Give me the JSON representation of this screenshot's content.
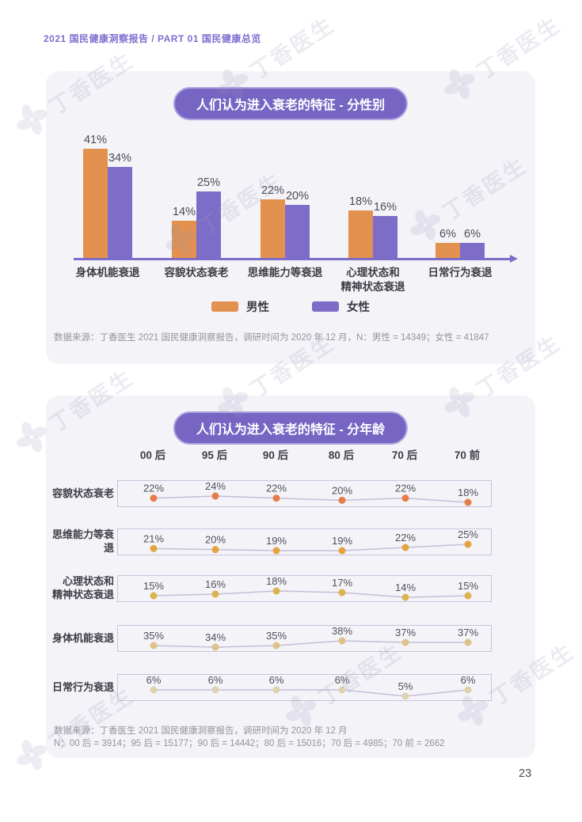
{
  "page": {
    "header": "2021 国民健康洞察报告 / PART 01 国民健康总览",
    "page_number": "23",
    "watermark_text": "丁香医生"
  },
  "chart_data": [
    {
      "type": "bar",
      "title": "人们认为进入衰老的特征 - 分性别",
      "categories": [
        "身体机能衰退",
        "容貌状态衰老",
        "思维能力等衰退",
        "心理状态和\n精神状态衰退",
        "日常行为衰退"
      ],
      "series": [
        {
          "name": "男性",
          "color": "#e2914e",
          "values": [
            41,
            14,
            22,
            18,
            6
          ]
        },
        {
          "name": "女性",
          "color": "#7d6cc8",
          "values": [
            34,
            25,
            20,
            16,
            6
          ]
        }
      ],
      "value_suffix": "%",
      "ylim": [
        0,
        45
      ],
      "legend_position": "bottom",
      "source": "数据来源：丁香医生 2021 国民健康洞察报告，调研时间为 2020 年 12 月，N：男性 = 14349；女性 = 41847"
    },
    {
      "type": "line",
      "title": "人们认为进入衰老的特征 - 分年龄",
      "x": [
        "00 后",
        "95 后",
        "90 后",
        "80 后",
        "70 后",
        "70 前"
      ],
      "series": [
        {
          "name": "容貌状态衰老",
          "color": "#e57d4b",
          "values": [
            22,
            24,
            22,
            20,
            22,
            18
          ]
        },
        {
          "name": "思维能力等衰退",
          "color": "#e3a440",
          "values": [
            21,
            20,
            19,
            19,
            22,
            25
          ]
        },
        {
          "name": "心理状态和\n精神状态衰退",
          "color": "#dcb44e",
          "values": [
            15,
            16,
            18,
            17,
            14,
            15
          ]
        },
        {
          "name": "身体机能衰退",
          "color": "#dcc289",
          "values": [
            35,
            34,
            35,
            38,
            37,
            37
          ]
        },
        {
          "name": "日常行为衰退",
          "color": "#ddd3ae",
          "values": [
            6,
            6,
            6,
            6,
            5,
            6
          ]
        }
      ],
      "value_suffix": "%",
      "source_line1": "数据来源：丁香医生 2021 国民健康洞察报告，调研时间为 2020 年 12 月",
      "source_line2": "N：00 后 = 3914；95 后 = 15177；90 后 = 14442；80 后 = 15016；70 后 = 4985；70 前 = 2662"
    }
  ]
}
